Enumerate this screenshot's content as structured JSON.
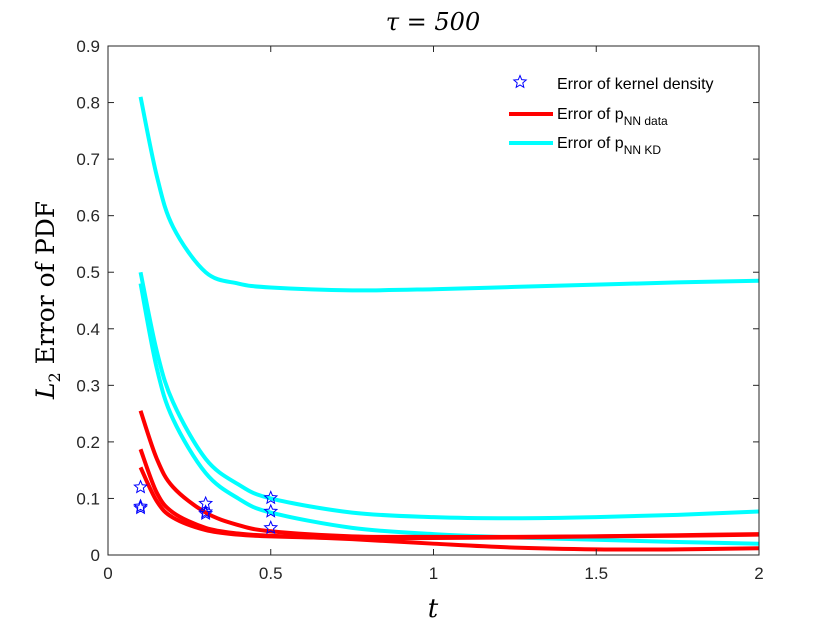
{
  "chart_data": {
    "type": "line",
    "title": "τ = 500",
    "xlabel": "t",
    "ylabel": "L2 Error of PDF",
    "ylabel_main": "L",
    "ylabel_sub": "2",
    "ylabel_rest": " Error of PDF",
    "xlim": [
      0,
      2
    ],
    "ylim": [
      0,
      0.9
    ],
    "xticks": [
      "0",
      "0.5",
      "1",
      "1.5",
      "2"
    ],
    "yticks": [
      "0",
      "0.1",
      "0.2",
      "0.3",
      "0.4",
      "0.5",
      "0.6",
      "0.7",
      "0.8",
      "0.9"
    ],
    "grid": false,
    "legend_placement": "top-right",
    "legend": [
      {
        "text": "Error of kernel density",
        "marker": "star",
        "color": "#0000ff"
      },
      {
        "text": "Error of p",
        "sub": "NN data",
        "color": "#ff0000"
      },
      {
        "text": "Error of p",
        "sub": "NN KD",
        "color": "#00ffff"
      }
    ],
    "x": [
      0.1,
      0.15,
      0.2,
      0.3,
      0.4,
      0.5,
      0.75,
      1,
      1.25,
      1.5,
      1.75,
      2
    ],
    "series": [
      {
        "name": "NN KD 1",
        "color": "#00ffff",
        "values": [
          0.81,
          0.67,
          0.58,
          0.5,
          0.48,
          0.473,
          0.468,
          0.47,
          0.474,
          0.478,
          0.482,
          0.485
        ]
      },
      {
        "name": "NN KD 2",
        "color": "#00ffff",
        "values": [
          0.5,
          0.36,
          0.27,
          0.17,
          0.125,
          0.1,
          0.075,
          0.067,
          0.065,
          0.067,
          0.071,
          0.077
        ]
      },
      {
        "name": "NN KD 3",
        "color": "#00ffff",
        "values": [
          0.48,
          0.33,
          0.24,
          0.145,
          0.1,
          0.075,
          0.048,
          0.037,
          0.031,
          0.027,
          0.023,
          0.02
        ]
      },
      {
        "name": "NN data 1",
        "color": "#ff0000",
        "values": [
          0.255,
          0.17,
          0.12,
          0.075,
          0.053,
          0.042,
          0.033,
          0.032,
          0.032,
          0.033,
          0.034,
          0.036
        ]
      },
      {
        "name": "NN data 2",
        "color": "#ff0000",
        "values": [
          0.187,
          0.11,
          0.075,
          0.048,
          0.038,
          0.034,
          0.028,
          0.02,
          0.013,
          0.01,
          0.01,
          0.012
        ]
      },
      {
        "name": "NN data 3",
        "color": "#ff0000",
        "values": [
          0.155,
          0.095,
          0.066,
          0.044,
          0.036,
          0.033,
          0.03,
          0.03,
          0.031,
          0.033,
          0.035,
          0.037
        ]
      }
    ],
    "kernel_density_points": [
      {
        "x": 0.1,
        "y": 0.12
      },
      {
        "x": 0.1,
        "y": 0.086
      },
      {
        "x": 0.1,
        "y": 0.083
      },
      {
        "x": 0.3,
        "y": 0.091
      },
      {
        "x": 0.3,
        "y": 0.076
      },
      {
        "x": 0.3,
        "y": 0.073
      },
      {
        "x": 0.5,
        "y": 0.101
      },
      {
        "x": 0.5,
        "y": 0.077
      },
      {
        "x": 0.5,
        "y": 0.048
      }
    ]
  }
}
